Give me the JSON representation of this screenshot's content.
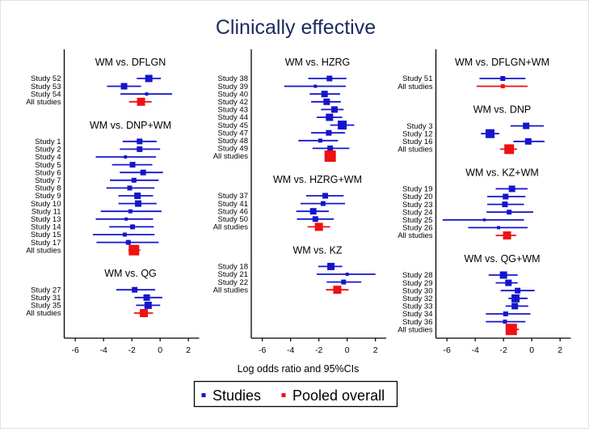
{
  "title": "Clinically effective",
  "title_color": "#1b2a5e",
  "xlabel": "Log odds ratio and 95%CIs",
  "legend": {
    "studies_label": "Studies",
    "pooled_label": "Pooled overall"
  },
  "colors": {
    "study_blue": "#1515cc",
    "pooled_red": "#ee1111",
    "axis_black": "#000000"
  },
  "chart_data": {
    "type": "forest",
    "x_ticks": [
      -6,
      -4,
      -2,
      0,
      2
    ],
    "xlim": [
      -6.78,
      2.76
    ],
    "xlabel": "Log odds ratio and 95%CIs",
    "legend_entries": [
      "Studies",
      "Pooled overall"
    ],
    "panels": [
      {
        "groups": [
          {
            "title": "WM vs. DFLGN",
            "rows": [
              {
                "label": "Study 52",
                "est": -0.8,
                "lo": -1.65,
                "hi": 0.05,
                "size": 9,
                "pooled": false
              },
              {
                "label": "Study 53",
                "est": -2.55,
                "lo": -3.75,
                "hi": -1.35,
                "size": 8,
                "pooled": false
              },
              {
                "label": "Study 54",
                "est": -0.95,
                "lo": -2.8,
                "hi": 0.85,
                "size": 4,
                "pooled": false
              },
              {
                "label": "All studies",
                "est": -1.35,
                "lo": -2.2,
                "hi": -0.6,
                "size": 10,
                "pooled": true
              }
            ]
          },
          {
            "title": "WM vs. DNP+WM",
            "rows": [
              {
                "label": "Study 1",
                "est": -1.45,
                "lo": -2.65,
                "hi": -0.25,
                "size": 7,
                "pooled": false
              },
              {
                "label": "Study 2",
                "est": -1.45,
                "lo": -2.85,
                "hi": 0.0,
                "size": 7,
                "pooled": false
              },
              {
                "label": "Study 4",
                "est": -2.45,
                "lo": -4.55,
                "hi": -0.3,
                "size": 4,
                "pooled": false
              },
              {
                "label": "Study 5",
                "est": -1.95,
                "lo": -3.4,
                "hi": -0.55,
                "size": 7,
                "pooled": false
              },
              {
                "label": "Study 6",
                "est": -1.2,
                "lo": -2.85,
                "hi": 0.2,
                "size": 7,
                "pooled": false
              },
              {
                "label": "Study 7",
                "est": -1.85,
                "lo": -3.55,
                "hi": -0.1,
                "size": 6,
                "pooled": false
              },
              {
                "label": "Study 8",
                "est": -2.15,
                "lo": -3.8,
                "hi": -0.4,
                "size": 6,
                "pooled": false
              },
              {
                "label": "Study 9",
                "est": -1.6,
                "lo": -2.95,
                "hi": -0.5,
                "size": 8,
                "pooled": false
              },
              {
                "label": "Study 10",
                "est": -1.55,
                "lo": -2.95,
                "hi": -0.25,
                "size": 8,
                "pooled": false
              },
              {
                "label": "Study 11",
                "est": -2.1,
                "lo": -4.2,
                "hi": 0.1,
                "size": 5,
                "pooled": false
              },
              {
                "label": "Study 13",
                "est": -2.4,
                "lo": -4.55,
                "hi": -0.5,
                "size": 4,
                "pooled": false
              },
              {
                "label": "Study 14",
                "est": -1.95,
                "lo": -3.6,
                "hi": -0.45,
                "size": 6,
                "pooled": false
              },
              {
                "label": "Study 15",
                "est": -2.5,
                "lo": -4.75,
                "hi": -0.4,
                "size": 5,
                "pooled": false
              },
              {
                "label": "Study 17",
                "est": -2.25,
                "lo": -4.5,
                "hi": -0.1,
                "size": 6,
                "pooled": false
              },
              {
                "label": "All studies",
                "est": -1.85,
                "lo": -2.25,
                "hi": -1.4,
                "size": 13,
                "pooled": true
              }
            ]
          },
          {
            "title": "WM vs. QG",
            "rows": [
              {
                "label": "Study 27",
                "est": -1.8,
                "lo": -3.1,
                "hi": -0.35,
                "size": 7,
                "pooled": false
              },
              {
                "label": "Study 31",
                "est": -0.95,
                "lo": -1.8,
                "hi": 0.15,
                "size": 8,
                "pooled": false
              },
              {
                "label": "Study 35",
                "est": -0.85,
                "lo": -1.7,
                "hi": 0.0,
                "size": 9,
                "pooled": false
              },
              {
                "label": "All studies",
                "est": -1.15,
                "lo": -1.85,
                "hi": -0.5,
                "size": 10,
                "pooled": true
              }
            ]
          }
        ]
      },
      {
        "groups": [
          {
            "title": "WM vs. HZRG",
            "rows": [
              {
                "label": "Study 38",
                "est": -1.25,
                "lo": -2.75,
                "hi": -0.05,
                "size": 7,
                "pooled": false
              },
              {
                "label": "Study 39",
                "est": -2.25,
                "lo": -4.45,
                "hi": -0.1,
                "size": 4,
                "pooled": false
              },
              {
                "label": "Study 40",
                "est": -1.6,
                "lo": -2.65,
                "hi": -0.5,
                "size": 8,
                "pooled": false
              },
              {
                "label": "Study 42",
                "est": -1.45,
                "lo": -2.55,
                "hi": -0.45,
                "size": 8,
                "pooled": false
              },
              {
                "label": "Study 43",
                "est": -0.9,
                "lo": -1.85,
                "hi": -0.25,
                "size": 8,
                "pooled": false
              },
              {
                "label": "Study 44",
                "est": -1.25,
                "lo": -2.15,
                "hi": -0.35,
                "size": 9,
                "pooled": false
              },
              {
                "label": "Study 45",
                "est": -0.35,
                "lo": -1.2,
                "hi": 0.5,
                "size": 11,
                "pooled": false
              },
              {
                "label": "Study 47",
                "est": -1.3,
                "lo": -2.55,
                "hi": -0.15,
                "size": 7,
                "pooled": false
              },
              {
                "label": "Study 48",
                "est": -1.9,
                "lo": -3.45,
                "hi": -0.65,
                "size": 5,
                "pooled": false
              },
              {
                "label": "Study 49",
                "est": -1.2,
                "lo": -2.45,
                "hi": 0.15,
                "size": 7,
                "pooled": false
              },
              {
                "label": "All studies",
                "est": -1.2,
                "lo": -1.6,
                "hi": -0.8,
                "size": 14,
                "pooled": true
              }
            ]
          },
          {
            "title": "WM vs. HZRG+WM",
            "rows": [
              {
                "label": "Study 37",
                "est": -1.55,
                "lo": -2.9,
                "hi": -0.25,
                "size": 7,
                "pooled": false
              },
              {
                "label": "Study 41",
                "est": -1.7,
                "lo": -3.3,
                "hi": -0.15,
                "size": 6,
                "pooled": false
              },
              {
                "label": "Study 46",
                "est": -2.4,
                "lo": -3.6,
                "hi": -1.3,
                "size": 8,
                "pooled": false
              },
              {
                "label": "Study 50",
                "est": -2.25,
                "lo": -3.55,
                "hi": -0.95,
                "size": 7,
                "pooled": false
              },
              {
                "label": "All studies",
                "est": -2.0,
                "lo": -2.8,
                "hi": -1.2,
                "size": 10,
                "pooled": true
              }
            ]
          },
          {
            "title": "WM vs. KZ",
            "rows": [
              {
                "label": "Study 18",
                "est": -1.15,
                "lo": -2.05,
                "hi": -0.35,
                "size": 9,
                "pooled": false
              },
              {
                "label": "Study 21",
                "est": 0.0,
                "lo": -2.15,
                "hi": 2.0,
                "size": 4,
                "pooled": false
              },
              {
                "label": "Study 22",
                "est": -0.25,
                "lo": -1.45,
                "hi": 1.0,
                "size": 6,
                "pooled": false
              },
              {
                "label": "All studies",
                "est": -0.7,
                "lo": -1.5,
                "hi": 0.1,
                "size": 10,
                "pooled": true
              }
            ]
          }
        ]
      },
      {
        "groups": [
          {
            "title": "WM vs. DFLGN+WM",
            "rows": [
              {
                "label": "Study 51",
                "est": -2.05,
                "lo": -3.7,
                "hi": -0.45,
                "size": 6,
                "pooled": false
              },
              {
                "label": "All studies",
                "est": -2.05,
                "lo": -3.9,
                "hi": -0.3,
                "size": 5,
                "pooled": true
              }
            ]
          },
          {
            "title": "WM vs. DNP",
            "rows": [
              {
                "label": "Study 3",
                "est": -0.4,
                "lo": -1.5,
                "hi": 0.85,
                "size": 8,
                "pooled": false
              },
              {
                "label": "Study 12",
                "est": -2.95,
                "lo": -3.6,
                "hi": -2.3,
                "size": 11,
                "pooled": false
              },
              {
                "label": "Study 16",
                "est": -0.25,
                "lo": -1.3,
                "hi": 0.9,
                "size": 8,
                "pooled": false
              },
              {
                "label": "All studies",
                "est": -1.6,
                "lo": -2.25,
                "hi": -1.05,
                "size": 12,
                "pooled": true
              }
            ]
          },
          {
            "title": "WM vs. KZ+WM",
            "rows": [
              {
                "label": "Study 19",
                "est": -1.4,
                "lo": -2.55,
                "hi": -0.3,
                "size": 8,
                "pooled": false
              },
              {
                "label": "Study 20",
                "est": -1.85,
                "lo": -3.15,
                "hi": -0.45,
                "size": 7,
                "pooled": false
              },
              {
                "label": "Study 23",
                "est": -1.9,
                "lo": -3.15,
                "hi": -0.55,
                "size": 7,
                "pooled": false
              },
              {
                "label": "Study 24",
                "est": -1.6,
                "lo": -3.2,
                "hi": 0.1,
                "size": 6,
                "pooled": false
              },
              {
                "label": "Study 25",
                "est": -3.35,
                "lo": -6.3,
                "hi": -0.55,
                "size": 3.5,
                "pooled": false
              },
              {
                "label": "Study 26",
                "est": -2.35,
                "lo": -4.5,
                "hi": -0.3,
                "size": 4,
                "pooled": false
              },
              {
                "label": "All studies",
                "est": -1.75,
                "lo": -2.55,
                "hi": -1.1,
                "size": 10,
                "pooled": true
              }
            ]
          },
          {
            "title": "WM vs. QG+WM",
            "rows": [
              {
                "label": "Study 28",
                "est": -2.0,
                "lo": -3.05,
                "hi": -1.0,
                "size": 9,
                "pooled": false
              },
              {
                "label": "Study 29",
                "est": -1.65,
                "lo": -2.55,
                "hi": -1.0,
                "size": 8,
                "pooled": false
              },
              {
                "label": "Study 30",
                "est": -1.0,
                "lo": -2.2,
                "hi": 0.2,
                "size": 7,
                "pooled": false
              },
              {
                "label": "Study 32",
                "est": -1.15,
                "lo": -1.65,
                "hi": -0.3,
                "size": 10,
                "pooled": false
              },
              {
                "label": "Study 33",
                "est": -1.2,
                "lo": -1.85,
                "hi": -0.25,
                "size": 8,
                "pooled": false
              },
              {
                "label": "Study 34",
                "est": -1.85,
                "lo": -3.25,
                "hi": -0.1,
                "size": 6,
                "pooled": false
              },
              {
                "label": "Study 36",
                "est": -1.9,
                "lo": -3.25,
                "hi": -0.45,
                "size": 5,
                "pooled": false
              },
              {
                "label": "All studies",
                "est": -1.45,
                "lo": -1.8,
                "hi": -0.9,
                "size": 14,
                "pooled": true
              }
            ]
          }
        ]
      }
    ]
  }
}
